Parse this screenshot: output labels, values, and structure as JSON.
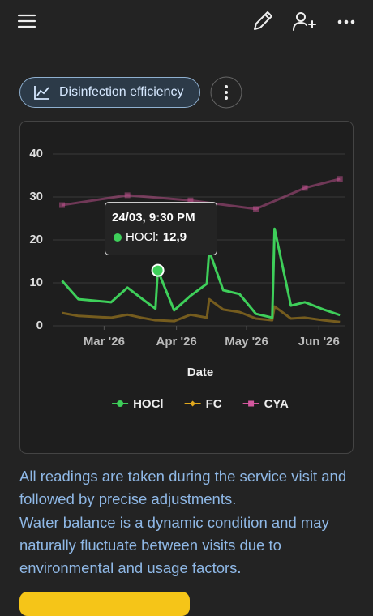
{
  "chip": {
    "label": "Disinfection efficiency"
  },
  "chart_data": {
    "type": "line",
    "x_label": "Date",
    "x": [
      "2026-02-11",
      "2026-02-18",
      "2026-03-04",
      "2026-03-11",
      "2026-03-17",
      "2026-03-23",
      "2026-03-24",
      "2026-03-31",
      "2026-04-07",
      "2026-04-14",
      "2026-04-15",
      "2026-04-21",
      "2026-04-28",
      "2026-05-05",
      "2026-05-12",
      "2026-05-13",
      "2026-05-20",
      "2026-05-26",
      "2026-06-03",
      "2026-06-10"
    ],
    "xlim": [
      "2026-02-07",
      "2026-06-12"
    ],
    "xticks": [
      {
        "value": "2026-03-01",
        "label": "Mar '26"
      },
      {
        "value": "2026-04-01",
        "label": "Apr '26"
      },
      {
        "value": "2026-05-01",
        "label": "May '26"
      },
      {
        "value": "2026-06-01",
        "label": "Jun '26"
      }
    ],
    "ylim": [
      0,
      40
    ],
    "yticks": [
      0,
      10,
      20,
      30,
      40
    ],
    "grid": true,
    "series": [
      {
        "name": "HOCl",
        "color": "#3ecf5a",
        "marker": "circle",
        "values": [
          10.5,
          6.2,
          5.5,
          8.9,
          6.4,
          4.0,
          12.9,
          3.6,
          7.0,
          9.8,
          17.5,
          8.3,
          7.4,
          2.8,
          1.9,
          22.6,
          4.7,
          5.5,
          3.8,
          2.5
        ]
      },
      {
        "name": "FC",
        "color": "#e0a81e",
        "marker": "diamond",
        "values": [
          3.0,
          2.3,
          1.9,
          2.6,
          1.9,
          1.3,
          1.3,
          1.1,
          2.6,
          1.9,
          6.2,
          3.8,
          3.2,
          1.7,
          1.3,
          4.5,
          1.7,
          1.9,
          1.3,
          0.9
        ]
      },
      {
        "name": "CYA",
        "color": "#d4589e",
        "marker": "square",
        "x": [
          "2026-02-11",
          "2026-03-11",
          "2026-04-07",
          "2026-05-05",
          "2026-05-26",
          "2026-06-10"
        ],
        "values": [
          28.1,
          30.4,
          29.2,
          27.2,
          32.1,
          34.2
        ]
      }
    ],
    "tooltip": {
      "title": "24/03, 9:30 PM",
      "label": "HOCl:",
      "value_label": "12,9"
    }
  },
  "notes": [
    "All readings are taken during the service visit and followed by precise adjustments.",
    "Water balance is a dynamic condition and may naturally fluctuate between visits due to environmental and usage factors."
  ]
}
